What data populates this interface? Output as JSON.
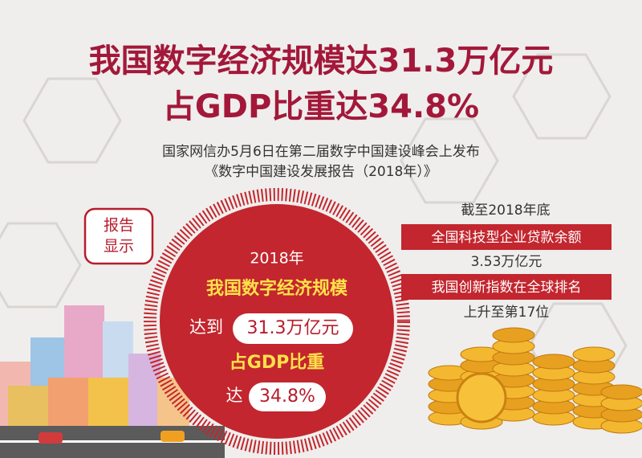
{
  "header": {
    "title_line1": "我国数字经济规模达31.3万亿元",
    "title_line2": "占GDP比重达34.8%",
    "subtitle_line1": "国家网信办5月6日在第二届数字中国建设峰会上发布",
    "subtitle_line2": "《数字中国建设发展报告（2018年）》"
  },
  "badge": {
    "line1": "报告",
    "line2": "显示"
  },
  "circle": {
    "year": "2018年",
    "label1": "我国数字经济规模",
    "prefix1": "达到",
    "value1": "31.3万亿元",
    "label2": "占GDP比重",
    "prefix2": "达",
    "value2": "34.8%"
  },
  "side": {
    "date": "截至2018年底",
    "label1": "全国科技型企业贷款余额",
    "value1": "3.53万亿元",
    "label2": "我国创新指数在全球排名",
    "value2": "上升至第17位"
  }
}
